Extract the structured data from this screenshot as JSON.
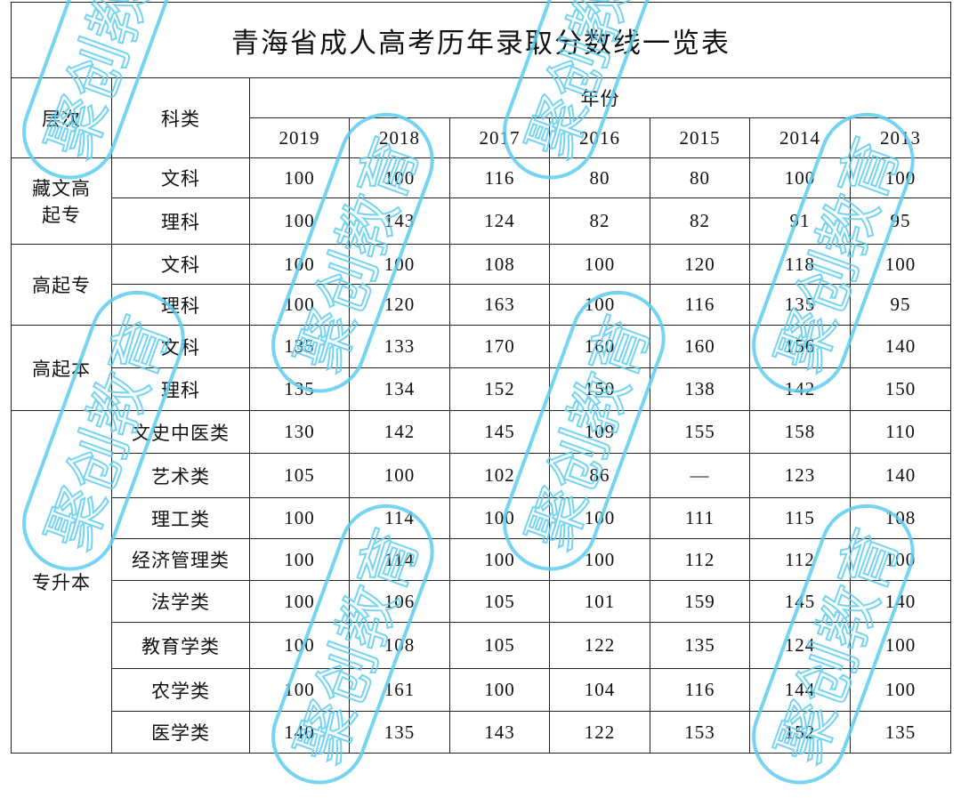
{
  "title": "青海省成人高考历年录取分数线一览表",
  "headers": {
    "level": "层次",
    "subject": "科类",
    "year_group": "年份",
    "years": [
      "2019",
      "2018",
      "2017",
      "2016",
      "2015",
      "2014",
      "2013"
    ]
  },
  "groups": [
    {
      "level": "藏文高起专",
      "rows": [
        {
          "subject": "文科",
          "scores": [
            "100",
            "100",
            "116",
            "80",
            "80",
            "100",
            "100"
          ]
        },
        {
          "subject": "理科",
          "scores": [
            "100",
            "143",
            "124",
            "82",
            "82",
            "91",
            "95"
          ]
        }
      ]
    },
    {
      "level": "高起专",
      "rows": [
        {
          "subject": "文科",
          "scores": [
            "100",
            "100",
            "108",
            "100",
            "120",
            "118",
            "100"
          ]
        },
        {
          "subject": "理科",
          "scores": [
            "100",
            "120",
            "163",
            "100",
            "116",
            "135",
            "95"
          ]
        }
      ]
    },
    {
      "level": "高起本",
      "rows": [
        {
          "subject": "文科",
          "scores": [
            "135",
            "133",
            "170",
            "160",
            "160",
            "156",
            "140"
          ]
        },
        {
          "subject": "理科",
          "scores": [
            "135",
            "134",
            "152",
            "150",
            "138",
            "142",
            "150"
          ]
        }
      ]
    },
    {
      "level": "专升本",
      "rows": [
        {
          "subject": "文史中医类",
          "scores": [
            "130",
            "142",
            "145",
            "109",
            "155",
            "158",
            "110"
          ]
        },
        {
          "subject": "艺术类",
          "scores": [
            "105",
            "100",
            "102",
            "86",
            "—",
            "123",
            "140"
          ]
        },
        {
          "subject": "理工类",
          "scores": [
            "100",
            "114",
            "100",
            "100",
            "111",
            "115",
            "108"
          ]
        },
        {
          "subject": "经济管理类",
          "scores": [
            "100",
            "114",
            "100",
            "100",
            "112",
            "112",
            "100"
          ]
        },
        {
          "subject": "法学类",
          "scores": [
            "100",
            "106",
            "105",
            "101",
            "159",
            "145",
            "140"
          ]
        },
        {
          "subject": "教育学类",
          "scores": [
            "100",
            "108",
            "105",
            "122",
            "135",
            "124",
            "100"
          ]
        },
        {
          "subject": "农学类",
          "scores": [
            "100",
            "161",
            "100",
            "104",
            "116",
            "144",
            "100"
          ]
        },
        {
          "subject": "医学类",
          "scores": [
            "140",
            "135",
            "143",
            "122",
            "153",
            "152",
            "135"
          ]
        }
      ]
    }
  ],
  "watermark": "聚创教育",
  "colors": {
    "watermark": "#5ccdf0",
    "border": "#222222"
  }
}
